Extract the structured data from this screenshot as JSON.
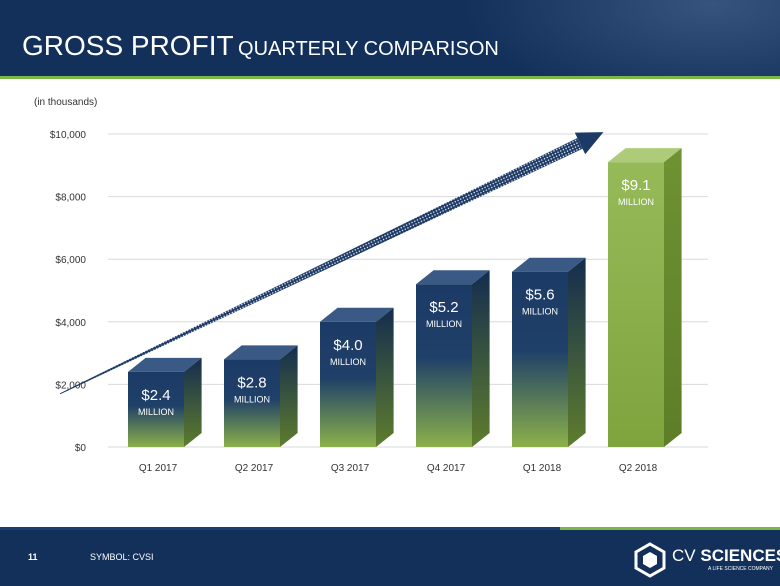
{
  "header": {
    "title_main": "GROSS PROFIT",
    "title_sub": "QUARTERLY COMPARISON"
  },
  "units_note": "(in thousands)",
  "footer": {
    "page_number": "11",
    "symbol": "SYMBOL: CVSI"
  },
  "logo": {
    "prefix": "CV",
    "name": "SCIENCES",
    "registered": "®",
    "tagline": "A LIFE SCIENCE COMPANY"
  },
  "colors": {
    "navy": "#12305a",
    "green": "#7ab648",
    "bar_green": "#8cb04a",
    "bar_navy": "#1c3a66"
  },
  "chart_data": {
    "type": "bar",
    "title": "GROSS PROFIT QUARTERLY COMPARISON",
    "ylabel": "(in thousands)",
    "xlabel": "",
    "categories": [
      "Q1 2017",
      "Q2 2017",
      "Q3 2017",
      "Q4 2017",
      "Q1 2018",
      "Q2 2018"
    ],
    "values": [
      2400,
      2800,
      4000,
      5200,
      5600,
      9100
    ],
    "value_labels": [
      "$2.4",
      "$2.8",
      "$4.0",
      "$5.2",
      "$5.6",
      "$9.1"
    ],
    "value_label_unit": "MILLION",
    "ylim": [
      0,
      10000
    ],
    "yticks": [
      0,
      2000,
      4000,
      6000,
      8000,
      10000
    ],
    "ytick_labels": [
      "$0",
      "$2,000",
      "$4,000",
      "$6,000",
      "$8,000",
      "$10,000"
    ],
    "grid": true,
    "annotations": [
      "upward trend arrow"
    ]
  }
}
